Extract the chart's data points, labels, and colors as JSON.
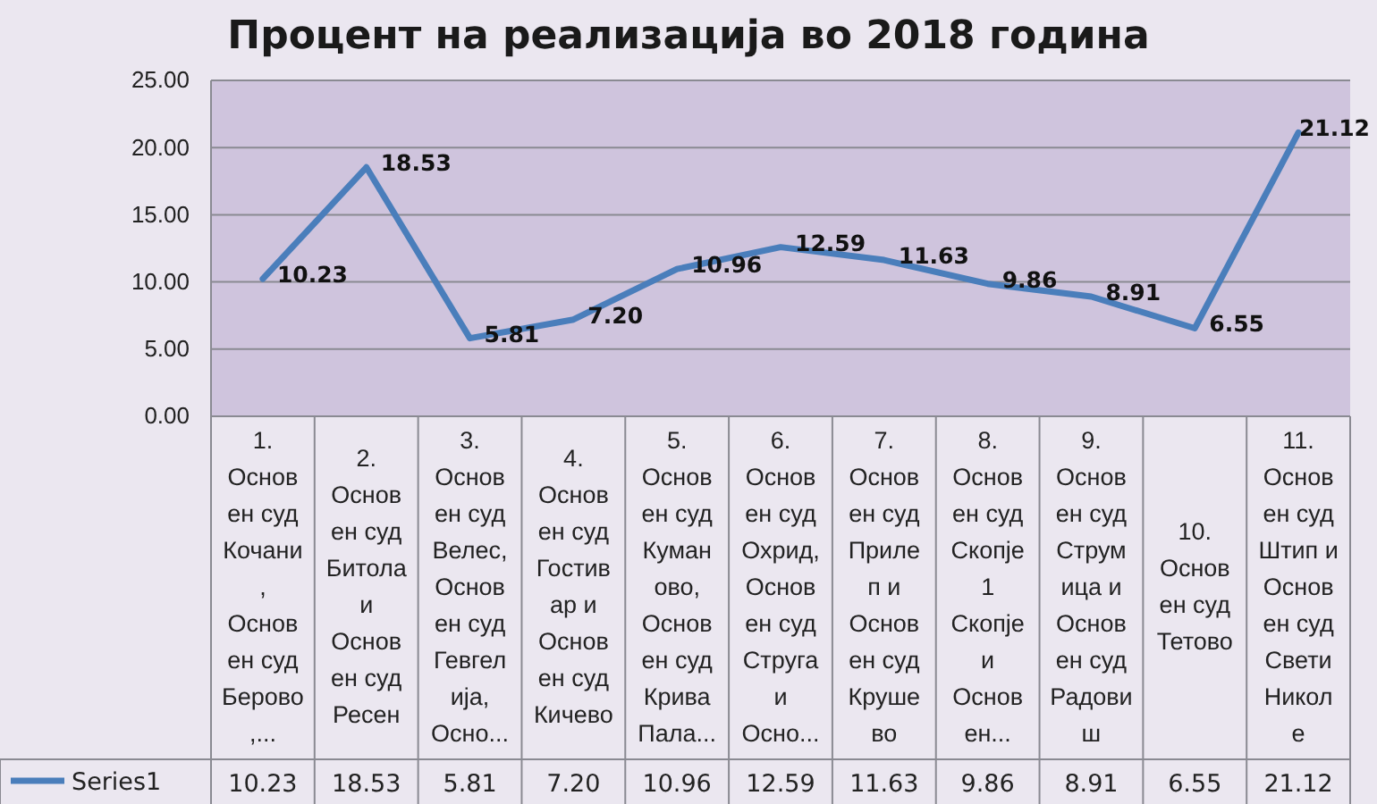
{
  "chart_data": {
    "type": "line",
    "title": "Процент на реализација во 2018 година",
    "categories": [
      "1.\nОснов\nен суд\nКочани\n,\nОснов\nен суд\nБерово\n,...",
      "2.\nОснов\nен суд\nБитола\nи\nОснов\nен суд\nРесен",
      "3.\nОснов\nен суд\nВелес,\nОснов\nен суд\nГевгел\nија,\nОсно...",
      "4.\nОснов\nен суд\nГостив\nар и\nОснов\nен суд\nКичево",
      "5.\nОснов\nен суд\nКуман\nово,\nОснов\nен суд\nКрива\nПала...",
      "6.\nОснов\nен суд\nОхрид,\nОснов\nен суд\nСтруга\nи\nОсно...",
      "7.\nОснов\nен суд\nПриле\nп и\nОснов\nен суд\nКруше\nво",
      "8.\nОснов\nен суд\nСкопје\n1\nСкопје\nи\nОснов\nен...",
      "9.\nОснов\nен суд\nСтрум\nица и\nОснов\nен суд\nРадови\nш",
      "10.\nОснов\nен суд\nТетово",
      "11.\nОснов\nен суд\nШтип и\nОснов\nен суд\nСвети\nНикол\nе"
    ],
    "series": [
      {
        "name": "Series1",
        "color": "#4a7ebb",
        "values": [
          10.23,
          18.53,
          5.81,
          7.2,
          10.96,
          12.59,
          11.63,
          9.86,
          8.91,
          6.55,
          21.12
        ],
        "value_labels": [
          "10.23",
          "18.53",
          "5.81",
          "7.20",
          "10.96",
          "12.59",
          "11.63",
          "9.86",
          "8.91",
          "6.55",
          "21.12"
        ]
      }
    ],
    "ylim": [
      0,
      25
    ],
    "yticks": [
      {
        "value": 0,
        "label": "0.00"
      },
      {
        "value": 5,
        "label": "5.00"
      },
      {
        "value": 10,
        "label": "10.00"
      },
      {
        "value": 15,
        "label": "15.00"
      },
      {
        "value": 20,
        "label": "20.00"
      },
      {
        "value": 25,
        "label": "25.00"
      }
    ],
    "grid": "y",
    "legend": "bottom",
    "marker": "none",
    "line_style": "solid"
  }
}
